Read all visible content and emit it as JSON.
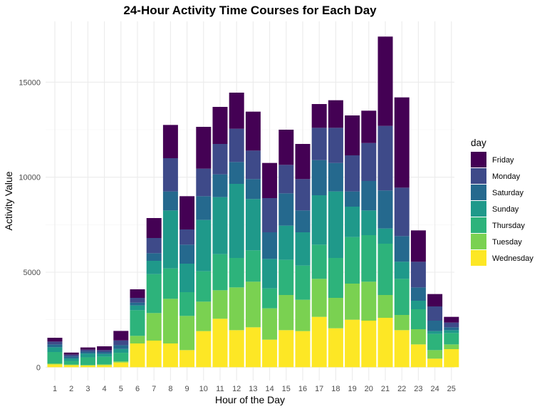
{
  "chart_data": {
    "type": "bar",
    "stacked": true,
    "title": "24-Hour Activity Time Courses for Each Day",
    "xlabel": "Hour of the Day",
    "ylabel": "Activity Value",
    "categories": [
      "1",
      "2",
      "3",
      "4",
      "5",
      "6",
      "7",
      "8",
      "9",
      "10",
      "11",
      "12",
      "13",
      "14",
      "15",
      "16",
      "17",
      "18",
      "19",
      "20",
      "21",
      "22",
      "23",
      "24",
      "25"
    ],
    "yticks": [
      0,
      5000,
      10000,
      15000
    ],
    "ylim": [
      -700,
      18200
    ],
    "grid": true,
    "legend": {
      "title": "day",
      "position": "right"
    },
    "series": [
      {
        "name": "Wednesday",
        "color": "#FDE725",
        "values": [
          150,
          110,
          90,
          110,
          250,
          1250,
          1400,
          1250,
          900,
          1900,
          2550,
          1950,
          2100,
          1450,
          1950,
          1900,
          2650,
          2050,
          2500,
          2450,
          2600,
          1950,
          1200,
          450,
          950
        ]
      },
      {
        "name": "Tuesday",
        "color": "#7AD151",
        "values": [
          50,
          30,
          30,
          40,
          60,
          400,
          1450,
          2350,
          1800,
          1550,
          1500,
          2250,
          2400,
          1650,
          1850,
          1650,
          2000,
          1600,
          1900,
          2050,
          1200,
          800,
          800,
          450,
          250
        ]
      },
      {
        "name": "Thursday",
        "color": "#2DB37B",
        "values": [
          600,
          190,
          400,
          400,
          450,
          1350,
          2050,
          1600,
          1250,
          1600,
          1900,
          1550,
          1650,
          1050,
          1850,
          1800,
          1800,
          2100,
          2450,
          2450,
          2700,
          1900,
          1050,
          850,
          600
        ]
      },
      {
        "name": "Sunday",
        "color": "#1F998A",
        "values": [
          250,
          130,
          200,
          150,
          200,
          250,
          700,
          3050,
          1500,
          2700,
          3000,
          3900,
          2700,
          1550,
          1800,
          1750,
          2600,
          3500,
          1600,
          1300,
          800,
          900,
          450,
          150,
          150
        ]
      },
      {
        "name": "Saturday",
        "color": "#25698E",
        "values": [
          150,
          100,
          100,
          100,
          200,
          150,
          400,
          1000,
          1000,
          1250,
          1200,
          1150,
          1050,
          1400,
          1700,
          1150,
          1850,
          1500,
          800,
          1550,
          2000,
          1350,
          700,
          550,
          150
        ]
      },
      {
        "name": "Monday",
        "color": "#3E4A89",
        "values": [
          150,
          100,
          100,
          100,
          250,
          250,
          800,
          1750,
          800,
          1450,
          1600,
          1750,
          1500,
          1800,
          1500,
          1650,
          1700,
          1850,
          1900,
          2000,
          3400,
          2550,
          1350,
          750,
          250
        ]
      },
      {
        "name": "Friday",
        "color": "#440154",
        "values": [
          200,
          110,
          120,
          200,
          500,
          450,
          1050,
          1750,
          1750,
          2200,
          1950,
          1900,
          2050,
          1850,
          1850,
          1850,
          1250,
          1450,
          2100,
          1700,
          4700,
          4750,
          1650,
          650,
          300
        ]
      }
    ]
  }
}
